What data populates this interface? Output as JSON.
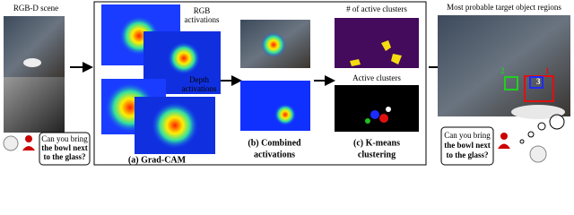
{
  "scene": {
    "title": "RGB-D scene",
    "query": [
      "Can you bring",
      "the bowl next",
      "to the glass?"
    ]
  },
  "gradcam": {
    "rgb_label": [
      "RGB",
      "activations"
    ],
    "depth_label": [
      "Depth",
      "activations"
    ],
    "caption": "(a) Grad-CAM"
  },
  "combined": {
    "caption": [
      "(b) Combined",
      "activations"
    ]
  },
  "kmeans": {
    "count_label": "# of active clusters",
    "active_label": "Active clusters",
    "caption": [
      "(c) K-means",
      "clustering"
    ]
  },
  "result": {
    "title": "Most probable target object regions",
    "boxes": [
      "1",
      "2",
      "3"
    ],
    "query": [
      "Can you bring",
      "the bowl next",
      "to the glass?"
    ]
  }
}
